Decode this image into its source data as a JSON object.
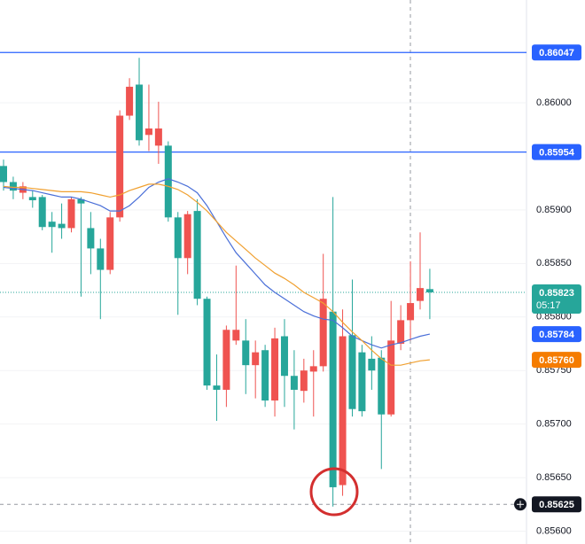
{
  "chart_data": {
    "type": "candlestick",
    "up_color": "#ef5350",
    "down_color": "#26a69a",
    "ylim": [
      0.85588,
      0.86096
    ],
    "yticks": [
      {
        "value": 0.86,
        "label": "0.86000"
      },
      {
        "value": 0.859,
        "label": "0.85900"
      },
      {
        "value": 0.8585,
        "label": "0.85850"
      },
      {
        "value": 0.858,
        "label": "0.85800"
      },
      {
        "value": 0.8575,
        "label": "0.85750"
      },
      {
        "value": 0.857,
        "label": "0.85700"
      },
      {
        "value": 0.8565,
        "label": "0.85650"
      },
      {
        "value": 0.856,
        "label": "0.85600"
      }
    ],
    "grid": true,
    "open": [
      0.85941,
      0.85926,
      0.85916,
      0.85912,
      0.85912,
      0.85889,
      0.85887,
      0.85883,
      0.8591,
      0.85883,
      0.85864,
      0.85844,
      0.85893,
      0.85988,
      0.86017,
      0.8597,
      0.8596,
      0.8596,
      0.85893,
      0.85855,
      0.85899,
      0.85817,
      0.85736,
      0.85732,
      0.85778,
      0.85778,
      0.85755,
      0.85769,
      0.85722,
      0.85782,
      0.85745,
      0.85731,
      0.85749,
      0.85754,
      0.85805,
      0.85643,
      0.85783,
      0.85767,
      0.85761,
      0.85762,
      0.85709,
      0.85775,
      0.85797,
      0.85815,
      0.85826
    ],
    "high": [
      0.85947,
      0.85931,
      0.85926,
      0.85918,
      0.85914,
      0.85898,
      0.85906,
      0.85912,
      0.85912,
      0.85898,
      0.85873,
      0.85898,
      0.85993,
      0.86023,
      0.86042,
      0.86017,
      0.86001,
      0.85964,
      0.85898,
      0.85899,
      0.8591,
      0.85819,
      0.85765,
      0.85792,
      0.85848,
      0.85798,
      0.85778,
      0.85774,
      0.8579,
      0.85798,
      0.85769,
      0.85761,
      0.85769,
      0.85859,
      0.85912,
      0.85807,
      0.85835,
      0.85774,
      0.85782,
      0.85769,
      0.85815,
      0.85811,
      0.85852,
      0.85879,
      0.85845
    ],
    "low": [
      0.85918,
      0.8591,
      0.8591,
      0.85902,
      0.85881,
      0.8586,
      0.85873,
      0.85879,
      0.85819,
      0.8584,
      0.85798,
      0.8584,
      0.85889,
      0.85984,
      0.8596,
      0.85955,
      0.85943,
      0.85889,
      0.85802,
      0.8584,
      0.85811,
      0.85732,
      0.85703,
      0.85716,
      0.85774,
      0.85728,
      0.85724,
      0.85716,
      0.85707,
      0.85716,
      0.85695,
      0.8572,
      0.85707,
      0.85749,
      0.85623,
      0.85633,
      0.85707,
      0.85707,
      0.85732,
      0.85658,
      0.85707,
      0.85769,
      0.85778,
      0.85807,
      0.85798
    ],
    "close": [
      0.85926,
      0.85918,
      0.85922,
      0.85909,
      0.85884,
      0.85884,
      0.85883,
      0.8591,
      0.85906,
      0.85864,
      0.85844,
      0.85893,
      0.85988,
      0.86015,
      0.85965,
      0.85976,
      0.85976,
      0.85893,
      0.85855,
      0.85896,
      0.85817,
      0.85736,
      0.85732,
      0.85788,
      0.85788,
      0.85755,
      0.85767,
      0.85722,
      0.8578,
      0.85745,
      0.85732,
      0.8575,
      0.85754,
      0.85817,
      0.85641,
      0.85782,
      0.85714,
      0.85712,
      0.8575,
      0.85709,
      0.85778,
      0.85797,
      0.85813,
      0.85827,
      0.85823
    ],
    "series": [
      {
        "color": "#4a6fd8",
        "values": [
          0.85921,
          0.8592,
          0.85919,
          0.85918,
          0.85916,
          0.85914,
          0.85912,
          0.85912,
          0.8591,
          0.85907,
          0.85904,
          0.85899,
          0.85899,
          0.85904,
          0.85912,
          0.85921,
          0.85926,
          0.85929,
          0.85926,
          0.85922,
          0.85916,
          0.85904,
          0.85889,
          0.85874,
          0.8586,
          0.8585,
          0.8584,
          0.8583,
          0.85823,
          0.85817,
          0.85811,
          0.85805,
          0.85801,
          0.85798,
          0.85797,
          0.8579,
          0.85782,
          0.85778,
          0.85774,
          0.85771,
          0.85774,
          0.85776,
          0.85779,
          0.85782,
          0.85784
        ]
      },
      {
        "color": "#f0a030",
        "values": [
          0.85922,
          0.85921,
          0.85921,
          0.8592,
          0.85919,
          0.85918,
          0.85917,
          0.85917,
          0.85917,
          0.85916,
          0.85914,
          0.85912,
          0.85914,
          0.85918,
          0.85921,
          0.85924,
          0.85924,
          0.85922,
          0.85919,
          0.85914,
          0.85907,
          0.85899,
          0.85889,
          0.85879,
          0.85871,
          0.85863,
          0.85855,
          0.85848,
          0.85841,
          0.85836,
          0.8583,
          0.85823,
          0.85818,
          0.85813,
          0.85805,
          0.85795,
          0.85786,
          0.85778,
          0.85769,
          0.85761,
          0.85755,
          0.85755,
          0.85757,
          0.85759,
          0.8576
        ]
      }
    ],
    "price_lines": [
      {
        "value": 0.86047,
        "label": "0.86047",
        "color": "#2962ff"
      },
      {
        "value": 0.85954,
        "label": "0.85954",
        "color": "#2962ff"
      }
    ],
    "current_price": {
      "value": 0.85823,
      "label": "0.85823",
      "color": "#26a69a",
      "countdown": "05:17"
    },
    "ma_labels": [
      {
        "value": 0.85784,
        "label": "0.85784",
        "color": "#2962ff"
      },
      {
        "value": 0.8576,
        "label": "0.85760",
        "color": "#f57c00"
      }
    ],
    "crosshair": {
      "value": 0.85625,
      "label": "0.85625"
    }
  }
}
